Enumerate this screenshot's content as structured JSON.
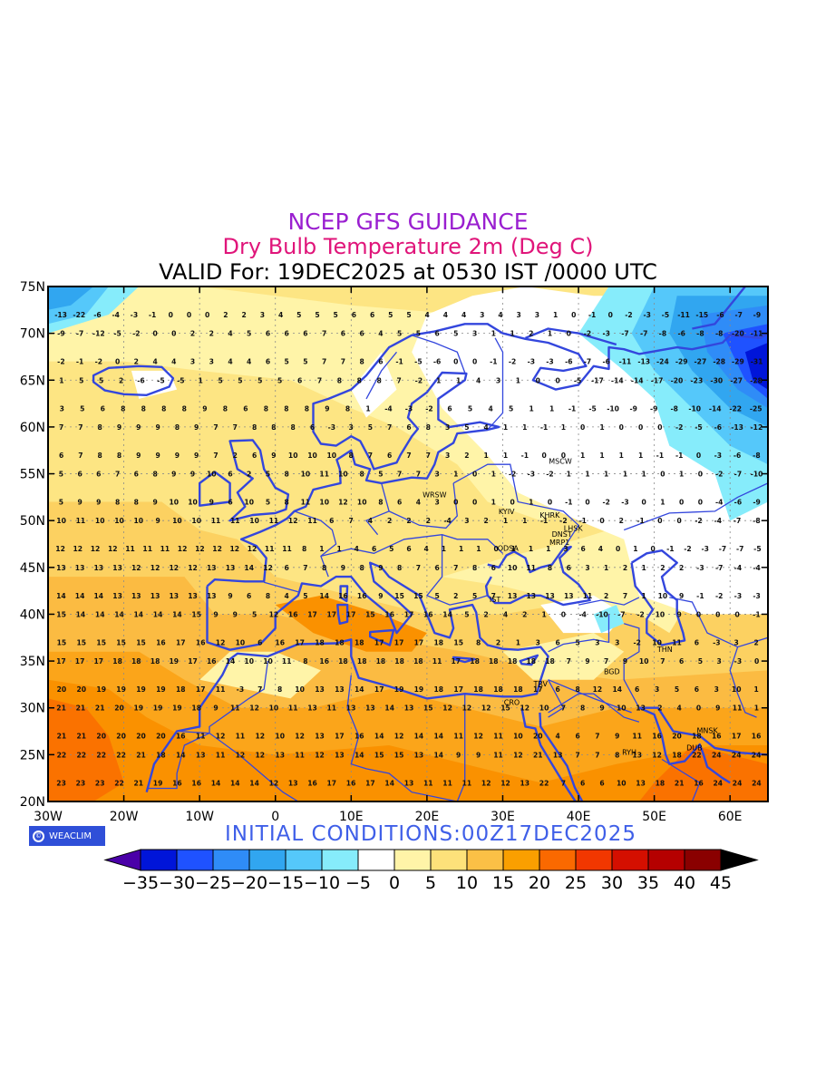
{
  "titles": {
    "line1": "NCEP GFS GUIDANCE",
    "line2": "Dry Bulb Temperature 2m (Deg C)",
    "line3": "VALID For: 19DEC2025 at 0530 IST /0000 UTC"
  },
  "colors": {
    "line1": "#9a1fd0",
    "line2": "#e0157a",
    "coast": "#3346dd",
    "initial": "#3f5fe8"
  },
  "axes": {
    "lat_labels": [
      "75N",
      "70N",
      "65N",
      "60N",
      "55N",
      "50N",
      "45N",
      "40N",
      "35N",
      "30N",
      "25N",
      "20N"
    ],
    "lon_labels": [
      "30W",
      "20W",
      "10W",
      "0",
      "10E",
      "20E",
      "30E",
      "40E",
      "50E",
      "60E"
    ]
  },
  "stations": [
    "MSCW",
    "KYIV",
    "KHRK",
    "LHSK",
    "DNST",
    "MRP1",
    "ODSA",
    "WRSW",
    "IST",
    "TRV",
    "BGD",
    "THN",
    "CRO",
    "MNSK",
    "RYH",
    "DUB"
  ],
  "logo": {
    "text": "WEACLIM",
    "icon": "logo-ring-icon"
  },
  "initial_conditions": "INITIAL  CONDITIONS:00Z17DEC2025",
  "colorbar": {
    "labels": [
      "-35",
      "-30",
      "-25",
      "-20",
      "-15",
      "-10",
      "-5",
      "0",
      "5",
      "10",
      "15",
      "20",
      "25",
      "30",
      "35",
      "40",
      "45"
    ],
    "colors": [
      "#4a00a8",
      "#0015d9",
      "#1f52ff",
      "#2f8cf7",
      "#31a6f0",
      "#55c8fa",
      "#86ecfb",
      "#ffffff",
      "#fff4a8",
      "#fde17a",
      "#fbc046",
      "#fa9f00",
      "#fa6900",
      "#f23700",
      "#d40f00",
      "#b50000",
      "#8a0000",
      "#000000"
    ]
  },
  "map_values": [
    {
      "lat": 72,
      "values": [
        -13,
        -22,
        -6,
        -4,
        -3,
        -1,
        0,
        0,
        0,
        2,
        2,
        3,
        4,
        5,
        5,
        5,
        6,
        6,
        5,
        5,
        4,
        4,
        4,
        3,
        4,
        3,
        3,
        1,
        0,
        -1,
        0,
        -2,
        -3,
        -5,
        -11,
        -15,
        -6,
        -7,
        -9
      ]
    },
    {
      "lat": 70,
      "values": [
        -9,
        -7,
        -12,
        -5,
        -2,
        0,
        0,
        2,
        2,
        4,
        5,
        6,
        6,
        6,
        7,
        6,
        6,
        4,
        5,
        5,
        6,
        5,
        3,
        1,
        1,
        2,
        1,
        0,
        -2,
        -3,
        -7,
        -7,
        -8,
        -6,
        -8,
        -8,
        -20,
        -11
      ]
    },
    {
      "lat": 67,
      "values": [
        -2,
        -1,
        -2,
        0,
        2,
        4,
        4,
        3,
        3,
        4,
        4,
        6,
        5,
        5,
        7,
        7,
        8,
        6,
        -1,
        -5,
        -6,
        0,
        0,
        -1,
        -2,
        -3,
        -3,
        -6,
        -7,
        -6,
        -11,
        -13,
        -24,
        -29,
        -27,
        -28,
        -29,
        -31
      ]
    },
    {
      "lat": 65,
      "values": [
        1,
        5,
        5,
        2,
        -6,
        -5,
        -5,
        1,
        5,
        5,
        5,
        5,
        6,
        7,
        8,
        8,
        8,
        7,
        -2,
        1,
        1,
        4,
        3,
        1,
        0,
        0,
        -5,
        -17,
        -14,
        -14,
        -17,
        -20,
        -23,
        -30,
        -27,
        -28
      ]
    },
    {
      "lat": 62,
      "values": [
        3,
        5,
        6,
        8,
        8,
        8,
        8,
        9,
        8,
        6,
        8,
        8,
        8,
        9,
        8,
        1,
        -4,
        -3,
        -2,
        6,
        5,
        4,
        5,
        1,
        1,
        -1,
        -5,
        -10,
        -9,
        -9,
        -8,
        -10,
        -14,
        -22,
        -25
      ]
    },
    {
      "lat": 60,
      "values": [
        7,
        7,
        8,
        9,
        9,
        9,
        8,
        9,
        7,
        7,
        8,
        8,
        8,
        6,
        -3,
        3,
        5,
        7,
        6,
        8,
        3,
        5,
        4,
        1,
        1,
        -1,
        1,
        0,
        1,
        0,
        0,
        0,
        -2,
        -5,
        -6,
        -13,
        -12
      ]
    },
    {
      "lat": 57,
      "values": [
        6,
        7,
        8,
        8,
        9,
        9,
        9,
        9,
        7,
        2,
        6,
        9,
        10,
        10,
        10,
        8,
        7,
        6,
        7,
        7,
        3,
        2,
        1,
        1,
        -1,
        0,
        0,
        1,
        1,
        1,
        1,
        -1,
        -1,
        0,
        -3,
        -6,
        -8
      ]
    },
    {
      "lat": 55,
      "values": [
        5,
        6,
        6,
        7,
        6,
        8,
        9,
        9,
        10,
        6,
        2,
        5,
        8,
        10,
        11,
        10,
        8,
        5,
        7,
        7,
        3,
        1,
        0,
        1,
        -2,
        -3,
        -2,
        1,
        1,
        1,
        1,
        1,
        0,
        1,
        0,
        -2,
        -7,
        -10
      ]
    },
    {
      "lat": 52,
      "values": [
        5,
        9,
        9,
        8,
        8,
        9,
        10,
        10,
        9,
        6,
        10,
        5,
        8,
        11,
        10,
        12,
        10,
        8,
        6,
        4,
        3,
        0,
        0,
        1,
        0,
        1,
        0,
        -1,
        0,
        -2,
        -3,
        0,
        1,
        0,
        0,
        -4,
        -6,
        -9
      ]
    },
    {
      "lat": 50,
      "values": [
        10,
        11,
        10,
        10,
        10,
        9,
        10,
        10,
        11,
        11,
        10,
        11,
        12,
        11,
        6,
        7,
        4,
        2,
        2,
        2,
        -4,
        3,
        2,
        1,
        1,
        -1,
        -2,
        -1,
        0,
        2,
        -1,
        0,
        0,
        -2,
        -4,
        -7,
        -8
      ]
    },
    {
      "lat": 47,
      "values": [
        12,
        12,
        12,
        12,
        11,
        11,
        11,
        12,
        12,
        12,
        12,
        12,
        11,
        11,
        8,
        1,
        1,
        4,
        6,
        5,
        6,
        4,
        1,
        1,
        1,
        0,
        1,
        1,
        1,
        3,
        6,
        4,
        0,
        1,
        0,
        -1,
        -2,
        -3,
        -7,
        -7,
        -5
      ]
    },
    {
      "lat": 45,
      "values": [
        13,
        13,
        13,
        13,
        12,
        12,
        12,
        12,
        13,
        13,
        14,
        12,
        6,
        7,
        8,
        9,
        8,
        9,
        8,
        7,
        6,
        7,
        8,
        6,
        10,
        11,
        8,
        6,
        3,
        1,
        2,
        1,
        2,
        2,
        -3,
        -7,
        -4,
        -4
      ]
    },
    {
      "lat": 42,
      "values": [
        14,
        14,
        14,
        13,
        13,
        13,
        13,
        13,
        13,
        9,
        6,
        8,
        4,
        5,
        14,
        16,
        16,
        9,
        15,
        15,
        5,
        2,
        5,
        7,
        13,
        13,
        13,
        13,
        11,
        2,
        7,
        1,
        10,
        9,
        -1,
        -2,
        -3,
        -3
      ]
    },
    {
      "lat": 40,
      "values": [
        15,
        14,
        14,
        14,
        14,
        14,
        14,
        15,
        9,
        9,
        5,
        12,
        16,
        17,
        17,
        17,
        15,
        16,
        17,
        16,
        14,
        5,
        2,
        4,
        2,
        1,
        0,
        -4,
        -10,
        -7,
        -2,
        10,
        9,
        0,
        0,
        0,
        -1
      ]
    },
    {
      "lat": 37,
      "values": [
        15,
        15,
        15,
        15,
        15,
        16,
        17,
        16,
        12,
        10,
        6,
        16,
        17,
        18,
        18,
        18,
        17,
        17,
        17,
        18,
        15,
        8,
        2,
        1,
        3,
        6,
        5,
        3,
        3,
        -2,
        10,
        11,
        6,
        -3,
        3,
        2
      ]
    },
    {
      "lat": 35,
      "values": [
        17,
        17,
        17,
        18,
        18,
        18,
        19,
        17,
        16,
        14,
        10,
        10,
        11,
        8,
        16,
        18,
        18,
        18,
        18,
        18,
        11,
        17,
        18,
        18,
        18,
        18,
        18,
        7,
        9,
        7,
        9,
        10,
        7,
        6,
        5,
        3,
        -3,
        0
      ]
    },
    {
      "lat": 32,
      "values": [
        20,
        20,
        19,
        19,
        19,
        19,
        18,
        17,
        11,
        -3,
        7,
        8,
        10,
        13,
        13,
        14,
        17,
        19,
        19,
        18,
        17,
        18,
        18,
        18,
        17,
        6,
        8,
        12,
        14,
        6,
        3,
        5,
        6,
        3,
        10,
        1
      ]
    },
    {
      "lat": 30,
      "values": [
        21,
        21,
        21,
        20,
        19,
        19,
        19,
        18,
        9,
        11,
        12,
        10,
        11,
        13,
        11,
        13,
        13,
        14,
        13,
        15,
        12,
        12,
        12,
        15,
        12,
        10,
        7,
        8,
        9,
        10,
        13,
        2,
        4,
        0,
        9,
        11,
        1
      ]
    },
    {
      "lat": 27,
      "values": [
        21,
        21,
        20,
        20,
        20,
        20,
        16,
        11,
        12,
        11,
        12,
        10,
        12,
        13,
        17,
        16,
        14,
        12,
        14,
        14,
        11,
        12,
        11,
        10,
        20,
        4,
        6,
        7,
        9,
        11,
        16,
        20,
        18,
        16,
        17,
        16
      ]
    },
    {
      "lat": 25,
      "values": [
        22,
        22,
        22,
        22,
        21,
        18,
        14,
        13,
        11,
        12,
        12,
        13,
        11,
        12,
        13,
        14,
        15,
        15,
        13,
        14,
        9,
        9,
        11,
        12,
        21,
        13,
        7,
        7,
        8,
        13,
        12,
        18,
        22,
        24,
        24,
        24
      ]
    },
    {
      "lat": 22,
      "values": [
        23,
        23,
        23,
        22,
        21,
        19,
        16,
        16,
        14,
        14,
        14,
        12,
        13,
        16,
        17,
        16,
        17,
        14,
        13,
        11,
        11,
        11,
        12,
        12,
        13,
        22,
        7,
        6,
        6,
        10,
        13,
        18,
        21,
        16,
        24,
        24,
        24
      ]
    }
  ]
}
